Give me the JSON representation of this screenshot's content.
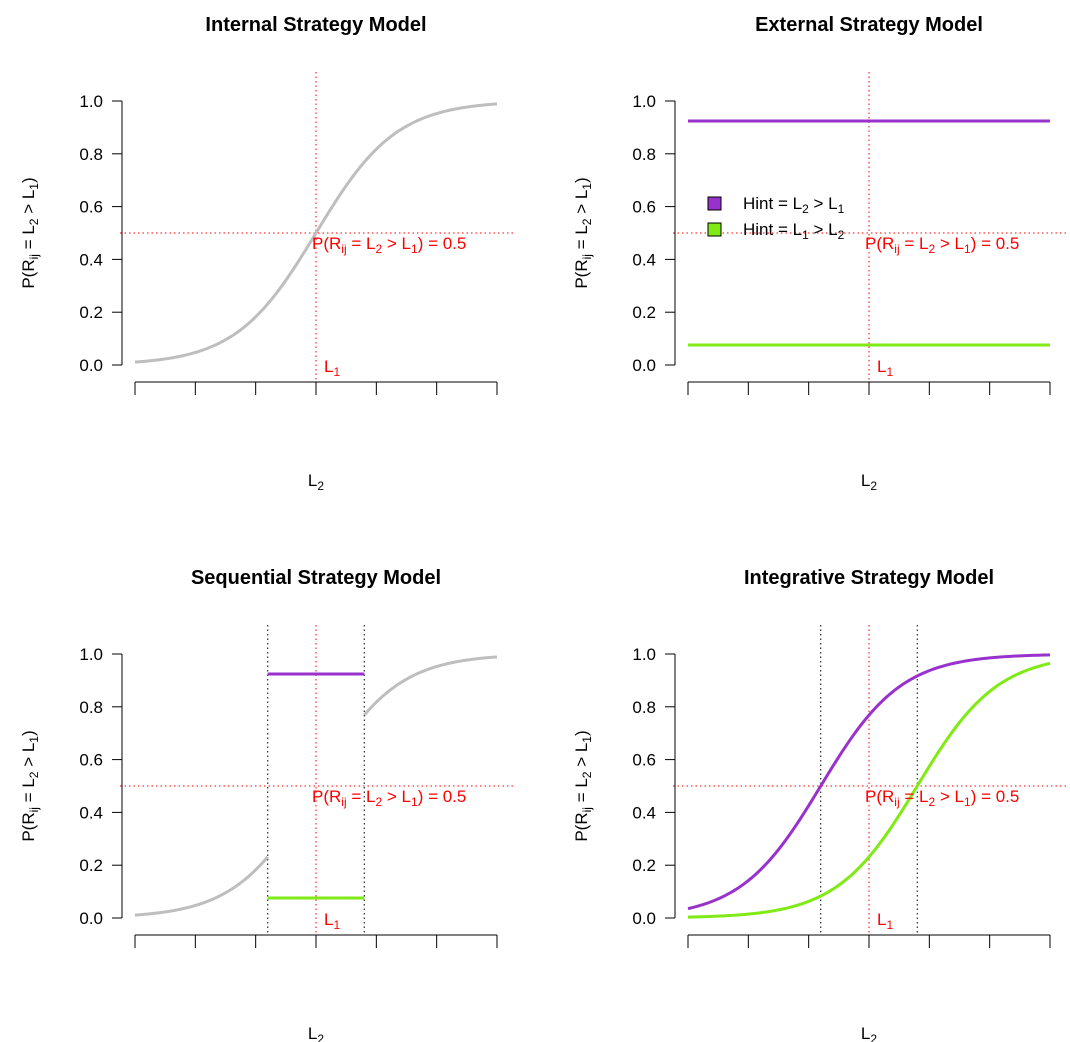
{
  "colors": {
    "internal": "#bebebe",
    "hint_l2": "#9932cc",
    "hint_l1": "#7fea14",
    "reference": "#ff0000",
    "boundary": "#000000"
  },
  "labels": {
    "xlabel_main": "L",
    "xlabel_sub": "2",
    "ylabel_parts": [
      "P(R",
      "ij",
      " = L",
      "2",
      " > L",
      "1",
      ")"
    ],
    "l1_main": "L",
    "l1_sub": "1",
    "threshold_parts": [
      "P(R",
      "ij",
      " = L",
      "2",
      " > L",
      "1",
      ") = 0.5"
    ],
    "legend": [
      {
        "main": "Hint = L",
        "sub": "2",
        "rest": " > L",
        "sub2": "1"
      },
      {
        "main": "Hint = L",
        "sub": "1",
        "rest": " > L",
        "sub2": "2"
      }
    ]
  },
  "chart_data": [
    {
      "type": "line",
      "title": "Internal Strategy Model",
      "xlim": [
        -3,
        3
      ],
      "ylim": [
        0,
        1
      ],
      "yticks": [
        "0.0",
        "0.2",
        "0.4",
        "0.6",
        "0.8",
        "1.0"
      ],
      "x_tick_count": 7,
      "reference": {
        "x": 0,
        "y": 0.5
      },
      "series": [
        {
          "color_key": "internal",
          "function": "logistic",
          "shift": 0,
          "slope": 1.5,
          "x_range": [
            -3,
            3
          ]
        }
      ],
      "boundaries": [],
      "legend": false
    },
    {
      "type": "line",
      "title": "External Strategy Model",
      "xlim": [
        -3,
        3
      ],
      "ylim": [
        0,
        1
      ],
      "yticks": [
        "0.0",
        "0.2",
        "0.4",
        "0.6",
        "0.8",
        "1.0"
      ],
      "x_tick_count": 7,
      "reference": {
        "x": 0,
        "y": 0.5
      },
      "series": [
        {
          "name": "Hint = L2 > L1",
          "color_key": "hint_l2",
          "function": "constant",
          "value": 0.924,
          "x_range": [
            -3,
            3
          ]
        },
        {
          "name": "Hint = L1 > L2",
          "color_key": "hint_l1",
          "function": "constant",
          "value": 0.076,
          "x_range": [
            -3,
            3
          ]
        }
      ],
      "boundaries": [],
      "legend": true
    },
    {
      "type": "line",
      "title": "Sequential Strategy Model",
      "xlim": [
        -3,
        3
      ],
      "ylim": [
        0,
        1
      ],
      "yticks": [
        "0.0",
        "0.2",
        "0.4",
        "0.6",
        "0.8",
        "1.0"
      ],
      "x_tick_count": 7,
      "reference": {
        "x": 0,
        "y": 0.5
      },
      "series": [
        {
          "color_key": "internal",
          "function": "logistic",
          "shift": 0,
          "slope": 1.5,
          "x_range": [
            -3,
            -0.8
          ]
        },
        {
          "color_key": "internal",
          "function": "logistic",
          "shift": 0,
          "slope": 1.5,
          "x_range": [
            0.8,
            3
          ]
        },
        {
          "color_key": "hint_l2",
          "function": "constant",
          "value": 0.924,
          "x_range": [
            -0.8,
            0.8
          ]
        },
        {
          "color_key": "hint_l1",
          "function": "constant",
          "value": 0.076,
          "x_range": [
            -0.8,
            0.8
          ]
        }
      ],
      "boundaries": [
        -0.8,
        0.8
      ],
      "legend": false
    },
    {
      "type": "line",
      "title": "Integrative Strategy Model",
      "xlim": [
        -3,
        3
      ],
      "ylim": [
        0,
        1
      ],
      "yticks": [
        "0.0",
        "0.2",
        "0.4",
        "0.6",
        "0.8",
        "1.0"
      ],
      "x_tick_count": 7,
      "reference": {
        "x": 0,
        "y": 0.5
      },
      "series": [
        {
          "color_key": "hint_l2",
          "function": "logistic",
          "shift": -0.8,
          "slope": 1.5,
          "x_range": [
            -3,
            3
          ]
        },
        {
          "color_key": "hint_l1",
          "function": "logistic",
          "shift": 0.8,
          "slope": 1.5,
          "x_range": [
            -3,
            3
          ]
        }
      ],
      "boundaries": [
        -0.8,
        0.8
      ],
      "legend": false
    }
  ]
}
